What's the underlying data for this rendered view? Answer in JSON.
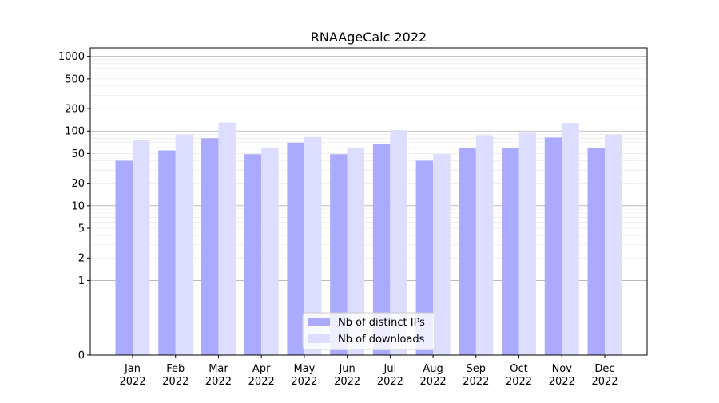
{
  "chart_data": {
    "type": "bar",
    "title": "RNAAgeCalc 2022",
    "xlabel": "",
    "ylabel": "",
    "yscale": "symlog",
    "ylim": [
      0,
      1300
    ],
    "grid": true,
    "legend_position": "bottom-center",
    "categories": [
      [
        "Jan",
        "2022"
      ],
      [
        "Feb",
        "2022"
      ],
      [
        "Mar",
        "2022"
      ],
      [
        "Apr",
        "2022"
      ],
      [
        "May",
        "2022"
      ],
      [
        "Jun",
        "2022"
      ],
      [
        "Jul",
        "2022"
      ],
      [
        "Aug",
        "2022"
      ],
      [
        "Sep",
        "2022"
      ],
      [
        "Oct",
        "2022"
      ],
      [
        "Nov",
        "2022"
      ],
      [
        "Dec",
        "2022"
      ]
    ],
    "y_ticks": [
      {
        "value": 0,
        "label": "0"
      },
      {
        "value": 1,
        "label": "1"
      },
      {
        "value": 2,
        "label": "2"
      },
      {
        "value": 5,
        "label": "5"
      },
      {
        "value": 10,
        "label": "10"
      },
      {
        "value": 20,
        "label": "20"
      },
      {
        "value": 50,
        "label": "50"
      },
      {
        "value": 100,
        "label": "100"
      },
      {
        "value": 200,
        "label": "200"
      },
      {
        "value": 500,
        "label": "500"
      },
      {
        "value": 1000,
        "label": "1000"
      }
    ],
    "series": [
      {
        "name": "Nb of distinct IPs",
        "color": "#aaaaff",
        "values": [
          40,
          55,
          80,
          49,
          70,
          49,
          67,
          40,
          60,
          60,
          82,
          60
        ]
      },
      {
        "name": "Nb of downloads",
        "color": "#ddddff",
        "values": [
          75,
          90,
          130,
          60,
          83,
          60,
          103,
          49,
          88,
          95,
          128,
          90
        ]
      }
    ]
  }
}
